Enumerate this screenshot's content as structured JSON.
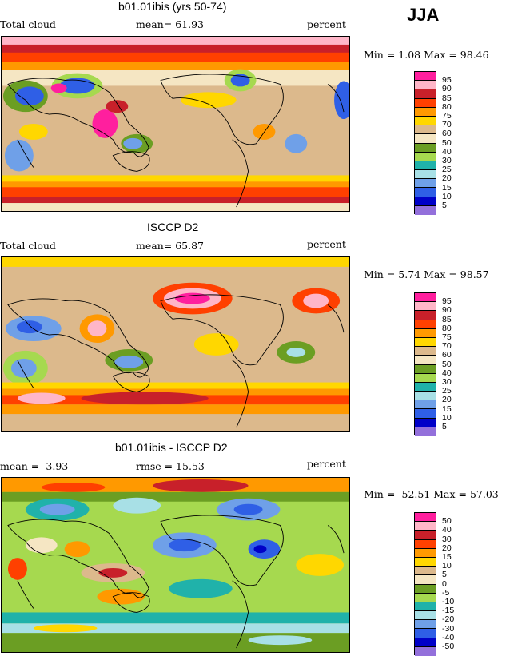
{
  "season": "JJA",
  "panels": [
    {
      "title": "b01.01ibis (yrs 50-74)",
      "left_label": "Total cloud",
      "mean_label": "mean=  61.93",
      "units": "percent",
      "minmax": "Min =    1.08 Max =   98.46",
      "levels": [
        "95",
        "90",
        "85",
        "80",
        "75",
        "70",
        "60",
        "50",
        "40",
        "30",
        "25",
        "20",
        "15",
        "10",
        "5"
      ],
      "colors": [
        "#ff1f9e",
        "#ffb6c8",
        "#c8202a",
        "#ff4000",
        "#ff9900",
        "#ffd700",
        "#dcb98c",
        "#f5e6c3",
        "#6b9e23",
        "#a6d94f",
        "#20b2aa",
        "#a8e0e6",
        "#6fa0e8",
        "#2f5fe6",
        "#0000c8",
        "#9370db"
      ]
    },
    {
      "title": "ISCCP D2",
      "left_label": "Total cloud",
      "mean_label": "mean=  65.87",
      "units": "percent",
      "minmax": "Min =    5.74 Max =  98.57",
      "levels": [
        "95",
        "90",
        "85",
        "80",
        "75",
        "70",
        "60",
        "50",
        "40",
        "30",
        "25",
        "20",
        "15",
        "10",
        "5"
      ],
      "colors": [
        "#ff1f9e",
        "#ffb6c8",
        "#c8202a",
        "#ff4000",
        "#ff9900",
        "#ffd700",
        "#dcb98c",
        "#f5e6c3",
        "#6b9e23",
        "#a6d94f",
        "#20b2aa",
        "#a8e0e6",
        "#6fa0e8",
        "#2f5fe6",
        "#0000c8",
        "#9370db"
      ]
    },
    {
      "title": "b01.01ibis - ISCCP D2",
      "left_label": "mean =   -3.93",
      "mean_label": "rmse =   15.53",
      "units": "percent",
      "minmax": "Min = -52.51 Max =  57.03",
      "levels": [
        "50",
        "40",
        "30",
        "20",
        "15",
        "10",
        "5",
        "0",
        "-5",
        "-10",
        "-15",
        "-20",
        "-30",
        "-40",
        "-50"
      ],
      "colors": [
        "#ff1f9e",
        "#ffb6c8",
        "#c8202a",
        "#ff4000",
        "#ff9900",
        "#ffd700",
        "#dcb98c",
        "#f5e6c3",
        "#6b9e23",
        "#a6d94f",
        "#20b2aa",
        "#a8e0e6",
        "#6fa0e8",
        "#2f5fe6",
        "#0000c8",
        "#9370db"
      ]
    }
  ]
}
